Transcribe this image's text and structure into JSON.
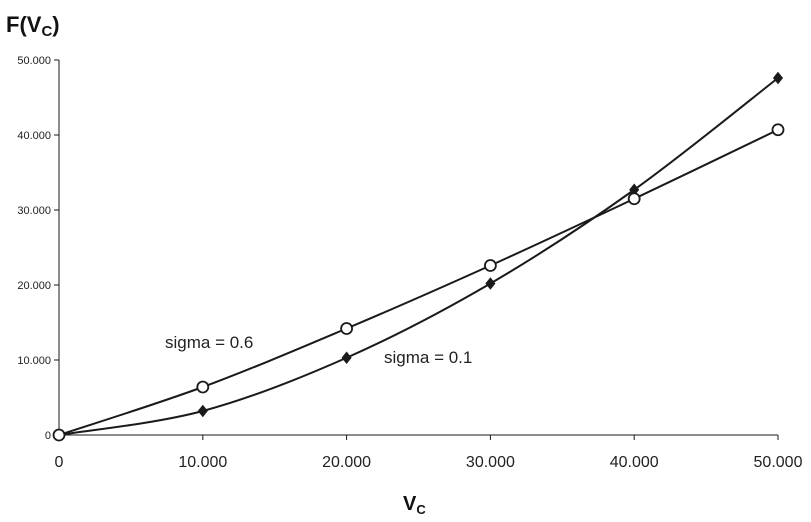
{
  "chart_data": {
    "type": "line",
    "ylabel": {
      "main": "F(V",
      "sub": "C",
      "close": ")"
    },
    "xlabel": {
      "main": "V",
      "sub": "C"
    },
    "x": [
      0,
      10000,
      20000,
      30000,
      40000,
      50000
    ],
    "xlim": [
      0,
      50000
    ],
    "ylim": [
      0,
      50000
    ],
    "x_tick_labels": [
      "0",
      "10.000",
      "20.000",
      "30.000",
      "40.000",
      "50.000"
    ],
    "y_tick_labels": [
      "0",
      "10.000",
      "20.000",
      "30.000",
      "40.000",
      "50.000"
    ],
    "y_tick_values": [
      0,
      10000,
      20000,
      30000,
      40000,
      50000
    ],
    "grid": false,
    "series": [
      {
        "marker": "open-circle",
        "values": [
          0,
          6400,
          14200,
          22600,
          31500,
          40700
        ]
      },
      {
        "marker": "filled-diamond",
        "values": [
          0,
          3200,
          10300,
          20200,
          32700,
          47600
        ]
      }
    ],
    "annotations": [
      {
        "text": "sigma = 0.6",
        "series_index": 0
      },
      {
        "text": "sigma = 0.1",
        "series_index": 1
      }
    ],
    "colors": {
      "line": "#1a1a1a",
      "marker_fill_open": "#ffffff",
      "marker_fill_solid": "#1a1a1a"
    }
  }
}
